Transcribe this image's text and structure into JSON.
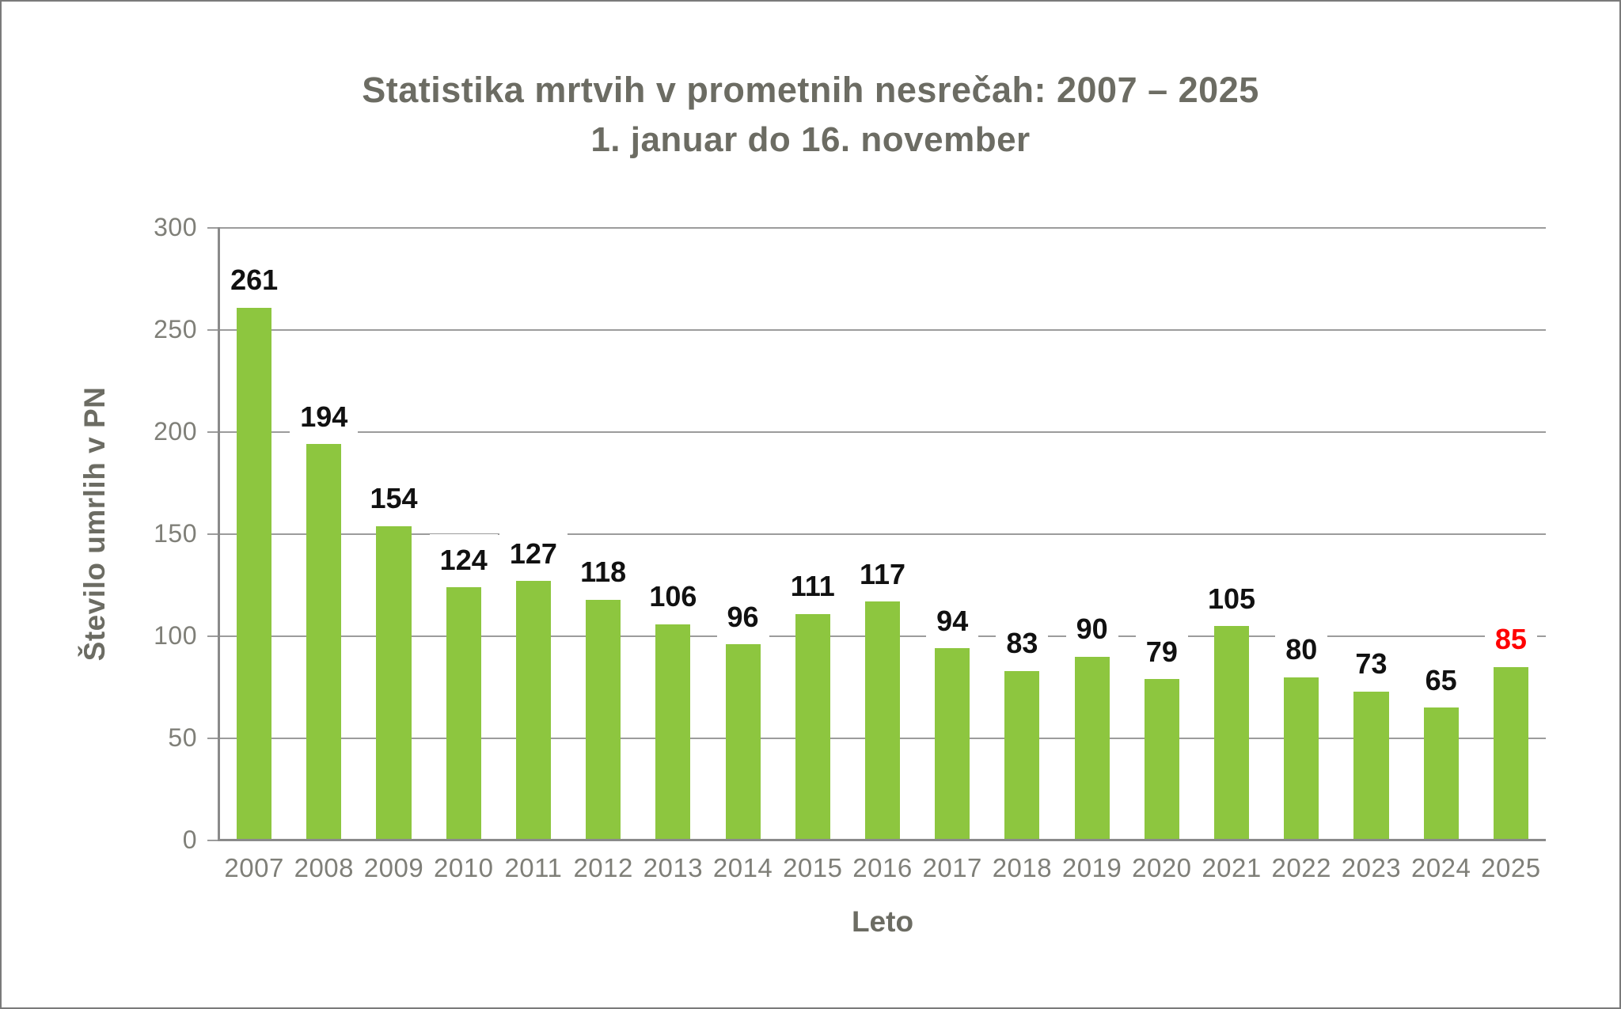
{
  "chart_data": {
    "type": "bar",
    "title": "Statistika mrtvih v prometnih nesrečah: 2007 – 2025",
    "subtitle": "1. januar do 16. november",
    "xlabel": "Leto",
    "ylabel": "Število umrlih v PN",
    "categories": [
      "2007",
      "2008",
      "2009",
      "2010",
      "2011",
      "2012",
      "2013",
      "2014",
      "2015",
      "2016",
      "2017",
      "2018",
      "2019",
      "2020",
      "2021",
      "2022",
      "2023",
      "2024",
      "2025"
    ],
    "values": [
      261,
      194,
      154,
      124,
      127,
      118,
      106,
      96,
      111,
      117,
      94,
      83,
      90,
      79,
      105,
      80,
      73,
      65,
      85
    ],
    "ylim": [
      0,
      300
    ],
    "yticks": [
      0,
      50,
      100,
      150,
      200,
      250,
      300
    ],
    "grid": "horizontal-solid",
    "legend": "none",
    "bar_color": "#8dc63f",
    "value_label_color": "#111111",
    "axis_color": "#8a8a8a",
    "grid_color": "#9c9c9c",
    "tick_label_color": "#7f7f78",
    "title_color": "#6c6c63",
    "highlight": {
      "category": "2025",
      "value": 85,
      "color": "#ff0000"
    }
  }
}
